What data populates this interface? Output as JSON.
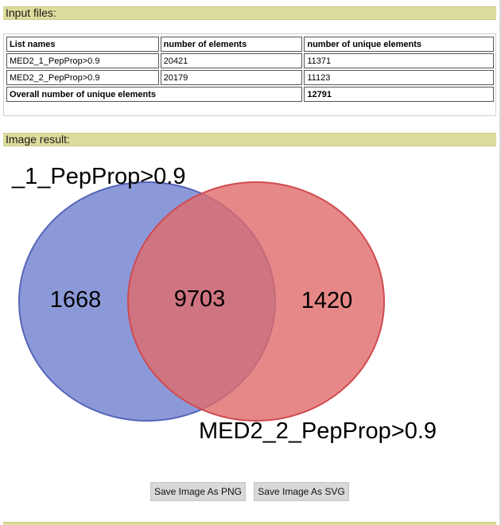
{
  "input_section": {
    "title": "Input files:",
    "table": {
      "headers": [
        "List names",
        "number of elements",
        "number of unique elements"
      ],
      "rows": [
        {
          "name": "MED2_1_PepProp>0.9",
          "elements": "20421",
          "unique": "11371"
        },
        {
          "name": "MED2_2_PepProp>0.9",
          "elements": "20179",
          "unique": "11123"
        }
      ],
      "overall_label": "Overall number of unique elements",
      "overall_value": "12791"
    }
  },
  "image_section": {
    "title": "Image result:",
    "venn": {
      "set_a_label": "_1_PepProp>0.9",
      "set_b_label": "MED2_2_PepProp>0.9",
      "only_a": "1668",
      "intersection": "9703",
      "only_b": "1420",
      "color_a": "#6f7fd0",
      "color_b": "#e06a6a"
    },
    "buttons": {
      "save_png": "Save Image As PNG",
      "save_svg": "Save Image As SVG"
    }
  }
}
